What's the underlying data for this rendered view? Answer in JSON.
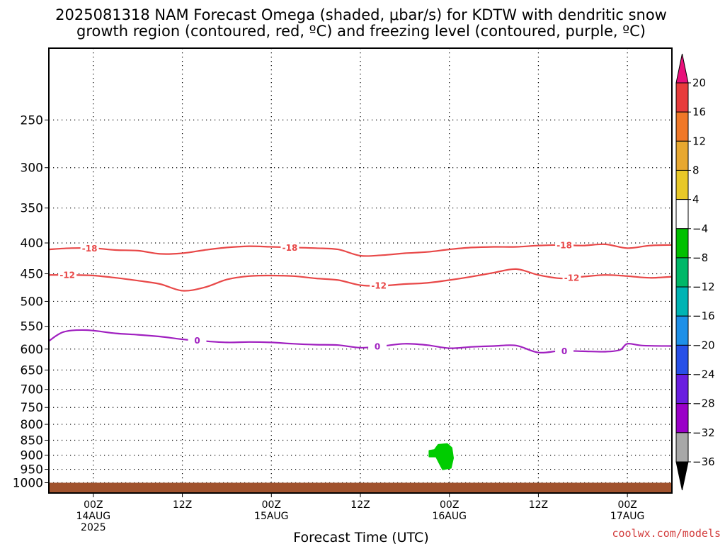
{
  "chart_data": {
    "type": "time-height contour",
    "title": [
      "2025081318 NAM Forecast Omega (shaded, μbar/s) for KDTW with dendritic snow",
      "growth region (contoured, red, ºC) and freezing level (contoured, purple, ºC)"
    ],
    "xlabel": "Forecast Time (UTC)",
    "credit": "coolwx.com/models",
    "y_axis": {
      "scale": "log-pressure",
      "range_hpa": [
        1040,
        190
      ],
      "ticks": [
        250,
        300,
        350,
        400,
        450,
        500,
        550,
        600,
        650,
        700,
        750,
        800,
        850,
        900,
        950,
        1000
      ]
    },
    "x_axis": {
      "range_hours": [
        -6,
        78
      ],
      "ticks": [
        {
          "hour": 0,
          "label": [
            "00Z",
            "14AUG",
            "2025"
          ]
        },
        {
          "hour": 12,
          "label": [
            "12Z"
          ]
        },
        {
          "hour": 24,
          "label": [
            "00Z",
            "15AUG"
          ]
        },
        {
          "hour": 36,
          "label": [
            "12Z"
          ]
        },
        {
          "hour": 48,
          "label": [
            "00Z",
            "16AUG"
          ]
        },
        {
          "hour": 60,
          "label": [
            "12Z"
          ]
        },
        {
          "hour": 72,
          "label": [
            "00Z",
            "17AUG"
          ]
        }
      ]
    },
    "ground": {
      "color": "#a0522d",
      "top_hpa": 1000
    },
    "contours": [
      {
        "label": "-18",
        "color": "#e84848",
        "label_hours": [
          -0.5,
          26.5,
          63.5
        ],
        "points": [
          [
            -6,
            410
          ],
          [
            -3,
            408
          ],
          [
            0,
            408
          ],
          [
            3,
            411
          ],
          [
            6,
            412
          ],
          [
            9,
            417
          ],
          [
            12,
            416
          ],
          [
            15,
            411
          ],
          [
            18,
            407
          ],
          [
            21,
            405
          ],
          [
            24,
            406
          ],
          [
            27,
            407
          ],
          [
            30,
            408
          ],
          [
            33,
            410
          ],
          [
            36,
            420
          ],
          [
            39,
            419
          ],
          [
            42,
            416
          ],
          [
            45,
            414
          ],
          [
            48,
            410
          ],
          [
            51,
            407
          ],
          [
            54,
            406
          ],
          [
            57,
            406
          ],
          [
            60,
            404
          ],
          [
            63,
            403
          ],
          [
            66,
            404
          ],
          [
            69,
            402
          ],
          [
            72,
            408
          ],
          [
            75,
            404
          ],
          [
            78,
            403
          ]
        ]
      },
      {
        "label": "-12",
        "color": "#e84848",
        "label_hours": [
          -3.5,
          38.5,
          64.5
        ],
        "points": [
          [
            -6,
            452
          ],
          [
            -3,
            452
          ],
          [
            0,
            453
          ],
          [
            3,
            457
          ],
          [
            6,
            462
          ],
          [
            9,
            468
          ],
          [
            12,
            480
          ],
          [
            15,
            474
          ],
          [
            18,
            460
          ],
          [
            21,
            454
          ],
          [
            24,
            453
          ],
          [
            27,
            454
          ],
          [
            30,
            458
          ],
          [
            33,
            461
          ],
          [
            36,
            470
          ],
          [
            39,
            471
          ],
          [
            42,
            468
          ],
          [
            45,
            466
          ],
          [
            48,
            461
          ],
          [
            51,
            455
          ],
          [
            54,
            448
          ],
          [
            57,
            442
          ],
          [
            60,
            452
          ],
          [
            63,
            458
          ],
          [
            66,
            455
          ],
          [
            69,
            452
          ],
          [
            72,
            454
          ],
          [
            75,
            457
          ],
          [
            78,
            455
          ]
        ]
      },
      {
        "label": "0",
        "color": "#a020c0",
        "label_hours": [
          14,
          38.3,
          63.5
        ],
        "points": [
          [
            -6,
            582
          ],
          [
            -4,
            562
          ],
          [
            -1,
            558
          ],
          [
            3,
            565
          ],
          [
            6,
            568
          ],
          [
            9,
            572
          ],
          [
            12,
            578
          ],
          [
            15,
            582
          ],
          [
            18,
            585
          ],
          [
            21,
            584
          ],
          [
            24,
            585
          ],
          [
            27,
            588
          ],
          [
            30,
            590
          ],
          [
            33,
            591
          ],
          [
            36,
            597
          ],
          [
            39,
            593
          ],
          [
            42,
            588
          ],
          [
            45,
            591
          ],
          [
            48,
            598
          ],
          [
            51,
            595
          ],
          [
            54,
            593
          ],
          [
            57,
            592
          ],
          [
            60,
            608
          ],
          [
            63,
            604
          ],
          [
            66,
            605
          ],
          [
            69,
            606
          ],
          [
            71,
            602
          ],
          [
            72,
            588
          ],
          [
            74,
            592
          ],
          [
            78,
            593
          ]
        ]
      }
    ],
    "shaded_regions": [
      {
        "value_range": [
          -8,
          -4
        ],
        "color": "#00cc00",
        "polygon_hpa": [
          [
            45.3,
            885
          ],
          [
            46,
            882
          ],
          [
            46.5,
            865
          ],
          [
            47.7,
            862
          ],
          [
            48.3,
            875
          ],
          [
            48.5,
            910
          ],
          [
            48.2,
            945
          ],
          [
            47.1,
            950
          ],
          [
            46.7,
            930
          ],
          [
            46.2,
            905
          ],
          [
            45.3,
            905
          ]
        ]
      }
    ],
    "colorbar": {
      "labels": [
        "20",
        "16",
        "12",
        "8",
        "4",
        "−4",
        "−8",
        "−12",
        "−16",
        "−20",
        "−24",
        "−28",
        "−32",
        "−36"
      ],
      "colors": [
        "#e83c3c",
        "#f07828",
        "#e8a830",
        "#e8c828",
        "#ffffff",
        "#00c000",
        "#00b868",
        "#00b4b4",
        "#1e90e8",
        "#2850e8",
        "#6a1ee0",
        "#9a00c8",
        "#a8a8a8"
      ],
      "top_arrow_color": "#e8107a",
      "bottom_arrow_color": "#000000"
    }
  }
}
